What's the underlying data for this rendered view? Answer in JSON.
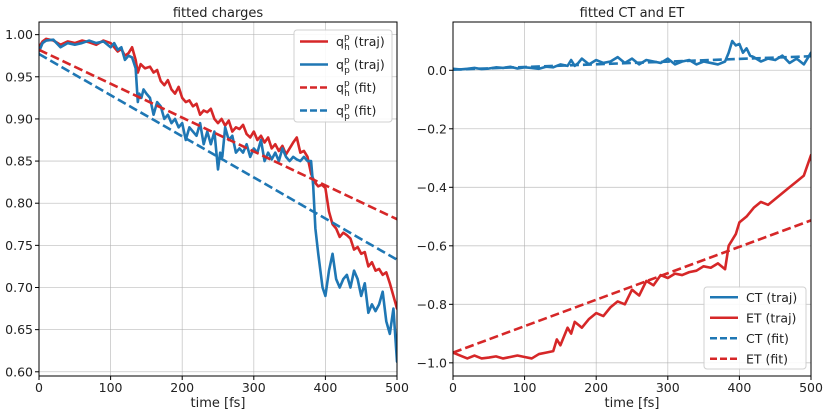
{
  "chart_data": [
    {
      "type": "line",
      "title": "fitted charges",
      "xlabel": "time [fs]",
      "ylabel": "",
      "xlim": [
        0,
        500
      ],
      "ylim": [
        0.595,
        1.015
      ],
      "xticks": [
        0,
        100,
        200,
        300,
        400,
        500
      ],
      "yticks": [
        0.6,
        0.65,
        0.7,
        0.75,
        0.8,
        0.85,
        0.9,
        0.95,
        1.0
      ],
      "xtick_labels": [
        "0",
        "100",
        "200",
        "300",
        "400",
        "500"
      ],
      "ytick_labels": [
        "0.60",
        "0.65",
        "0.70",
        "0.75",
        "0.80",
        "0.85",
        "0.90",
        "0.95",
        "1.00"
      ],
      "legend_position": "top-right",
      "series": [
        {
          "name": "q_h^p (traj)",
          "label_main": "q",
          "label_sup": "p",
          "label_sub": "h",
          "label_suffix": " (traj)",
          "color": "#d62728",
          "style": "solid",
          "x": [
            0,
            5,
            10,
            20,
            30,
            40,
            50,
            60,
            70,
            80,
            90,
            100,
            105,
            110,
            115,
            120,
            125,
            130,
            135,
            138,
            142,
            148,
            155,
            160,
            165,
            170,
            175,
            180,
            185,
            190,
            195,
            200,
            205,
            210,
            215,
            220,
            225,
            230,
            235,
            240,
            245,
            250,
            255,
            260,
            265,
            270,
            275,
            280,
            285,
            290,
            295,
            300,
            305,
            310,
            315,
            320,
            325,
            330,
            335,
            340,
            345,
            350,
            355,
            360,
            365,
            370,
            375,
            380,
            385,
            390,
            395,
            400,
            405,
            410,
            415,
            420,
            425,
            430,
            435,
            440,
            445,
            450,
            455,
            460,
            465,
            470,
            475,
            480,
            485,
            490,
            495,
            500
          ],
          "y": [
            0.985,
            0.992,
            0.995,
            0.993,
            0.988,
            0.992,
            0.99,
            0.993,
            0.991,
            0.988,
            0.993,
            0.99,
            0.985,
            0.98,
            0.983,
            0.975,
            0.978,
            0.985,
            0.97,
            0.955,
            0.965,
            0.96,
            0.962,
            0.955,
            0.958,
            0.945,
            0.94,
            0.946,
            0.935,
            0.93,
            0.938,
            0.925,
            0.92,
            0.922,
            0.915,
            0.918,
            0.905,
            0.91,
            0.908,
            0.912,
            0.9,
            0.895,
            0.9,
            0.892,
            0.898,
            0.885,
            0.89,
            0.888,
            0.893,
            0.882,
            0.878,
            0.885,
            0.875,
            0.88,
            0.872,
            0.878,
            0.865,
            0.87,
            0.862,
            0.868,
            0.858,
            0.865,
            0.872,
            0.878,
            0.86,
            0.862,
            0.855,
            0.835,
            0.825,
            0.82,
            0.822,
            0.818,
            0.79,
            0.775,
            0.77,
            0.76,
            0.765,
            0.762,
            0.758,
            0.745,
            0.748,
            0.74,
            0.742,
            0.725,
            0.73,
            0.72,
            0.722,
            0.715,
            0.718,
            0.705,
            0.69,
            0.675
          ]
        },
        {
          "name": "q_p^p (traj)",
          "label_main": "q",
          "label_sup": "p",
          "label_sub": "p",
          "label_suffix": " (traj)",
          "color": "#1f77b4",
          "style": "solid",
          "x": [
            0,
            5,
            10,
            20,
            30,
            40,
            50,
            60,
            70,
            80,
            90,
            100,
            105,
            110,
            115,
            120,
            125,
            130,
            135,
            138,
            140,
            143,
            146,
            150,
            155,
            160,
            165,
            170,
            175,
            180,
            185,
            190,
            195,
            200,
            205,
            210,
            215,
            220,
            225,
            230,
            235,
            240,
            245,
            250,
            253,
            256,
            260,
            265,
            270,
            275,
            280,
            285,
            290,
            295,
            300,
            305,
            310,
            315,
            320,
            325,
            330,
            335,
            340,
            345,
            350,
            355,
            360,
            365,
            370,
            375,
            380,
            383,
            386,
            390,
            393,
            396,
            400,
            405,
            410,
            415,
            420,
            425,
            430,
            435,
            440,
            445,
            450,
            455,
            460,
            465,
            470,
            475,
            480,
            485,
            490,
            495,
            500
          ],
          "y": [
            0.98,
            0.99,
            0.993,
            0.994,
            0.985,
            0.99,
            0.988,
            0.99,
            0.993,
            0.99,
            0.992,
            0.985,
            0.99,
            0.982,
            0.985,
            0.97,
            0.975,
            0.973,
            0.96,
            0.92,
            0.93,
            0.925,
            0.935,
            0.93,
            0.925,
            0.905,
            0.92,
            0.915,
            0.9,
            0.905,
            0.895,
            0.9,
            0.89,
            0.895,
            0.875,
            0.89,
            0.885,
            0.88,
            0.895,
            0.87,
            0.885,
            0.87,
            0.885,
            0.84,
            0.86,
            0.855,
            0.89,
            0.875,
            0.88,
            0.86,
            0.865,
            0.86,
            0.87,
            0.855,
            0.865,
            0.86,
            0.875,
            0.85,
            0.86,
            0.852,
            0.86,
            0.85,
            0.865,
            0.855,
            0.85,
            0.855,
            0.852,
            0.85,
            0.855,
            0.85,
            0.85,
            0.82,
            0.77,
            0.74,
            0.72,
            0.7,
            0.69,
            0.72,
            0.74,
            0.71,
            0.7,
            0.71,
            0.715,
            0.7,
            0.72,
            0.71,
            0.69,
            0.705,
            0.67,
            0.68,
            0.672,
            0.68,
            0.695,
            0.66,
            0.645,
            0.675,
            0.612
          ]
        },
        {
          "name": "q_h^p (fit)",
          "label_main": "q",
          "label_sup": "p",
          "label_sub": "h",
          "label_suffix": " (fit)",
          "color": "#d62728",
          "style": "dashed",
          "x": [
            0,
            500
          ],
          "y": [
            0.982,
            0.781
          ]
        },
        {
          "name": "q_p^p (fit)",
          "label_main": "q",
          "label_sup": "p",
          "label_sub": "p",
          "label_suffix": " (fit)",
          "color": "#1f77b4",
          "style": "dashed",
          "x": [
            0,
            500
          ],
          "y": [
            0.977,
            0.733
          ]
        }
      ]
    },
    {
      "type": "line",
      "title": "fitted CT and ET",
      "xlabel": "time [fs]",
      "ylabel": "",
      "xlim": [
        0,
        500
      ],
      "ylim": [
        -1.045,
        0.165
      ],
      "xticks": [
        0,
        100,
        200,
        300,
        400,
        500
      ],
      "yticks": [
        -1.0,
        -0.8,
        -0.6,
        -0.4,
        -0.2,
        0.0
      ],
      "xtick_labels": [
        "0",
        "100",
        "200",
        "300",
        "400",
        "500"
      ],
      "ytick_labels": [
        "−1.0",
        "−0.8",
        "−0.6",
        "−0.4",
        "−0.2",
        "0.0"
      ],
      "legend_position": "lower-right",
      "series": [
        {
          "name": "CT (traj)",
          "color": "#1f77b4",
          "style": "solid",
          "x": [
            0,
            10,
            20,
            30,
            40,
            50,
            60,
            70,
            80,
            90,
            100,
            110,
            120,
            130,
            140,
            150,
            160,
            165,
            170,
            175,
            180,
            190,
            200,
            210,
            220,
            230,
            240,
            250,
            260,
            270,
            280,
            290,
            300,
            310,
            320,
            330,
            340,
            350,
            360,
            370,
            380,
            385,
            390,
            395,
            400,
            405,
            410,
            415,
            420,
            430,
            440,
            450,
            460,
            470,
            480,
            490,
            500
          ],
          "y": [
            0.005,
            0.003,
            0.005,
            0.008,
            0.004,
            0.006,
            0.01,
            0.008,
            0.012,
            0.006,
            0.01,
            0.008,
            0.005,
            0.012,
            0.01,
            0.02,
            0.015,
            0.035,
            0.015,
            0.025,
            0.04,
            0.02,
            0.035,
            0.025,
            0.03,
            0.045,
            0.025,
            0.04,
            0.02,
            0.035,
            0.03,
            0.025,
            0.04,
            0.02,
            0.03,
            0.035,
            0.02,
            0.03,
            0.025,
            0.02,
            0.03,
            0.06,
            0.1,
            0.085,
            0.09,
            0.06,
            0.075,
            0.05,
            0.045,
            0.03,
            0.04,
            0.035,
            0.05,
            0.025,
            0.04,
            0.02,
            0.06
          ]
        },
        {
          "name": "ET (traj)",
          "color": "#d62728",
          "style": "solid",
          "x": [
            0,
            10,
            20,
            30,
            40,
            50,
            60,
            70,
            80,
            90,
            100,
            110,
            120,
            130,
            140,
            145,
            150,
            160,
            165,
            170,
            175,
            180,
            190,
            200,
            210,
            220,
            230,
            240,
            250,
            260,
            270,
            280,
            290,
            300,
            310,
            320,
            330,
            340,
            350,
            360,
            370,
            380,
            385,
            390,
            395,
            400,
            410,
            420,
            430,
            440,
            450,
            460,
            470,
            480,
            490,
            500
          ],
          "y": [
            -0.965,
            -0.975,
            -0.985,
            -0.975,
            -0.985,
            -0.982,
            -0.978,
            -0.985,
            -0.98,
            -0.975,
            -0.98,
            -0.985,
            -0.97,
            -0.965,
            -0.96,
            -0.92,
            -0.94,
            -0.88,
            -0.9,
            -0.86,
            -0.87,
            -0.88,
            -0.85,
            -0.83,
            -0.84,
            -0.81,
            -0.79,
            -0.8,
            -0.75,
            -0.77,
            -0.72,
            -0.735,
            -0.7,
            -0.71,
            -0.695,
            -0.7,
            -0.69,
            -0.685,
            -0.67,
            -0.675,
            -0.66,
            -0.68,
            -0.6,
            -0.58,
            -0.56,
            -0.52,
            -0.5,
            -0.47,
            -0.45,
            -0.46,
            -0.44,
            -0.42,
            -0.4,
            -0.38,
            -0.36,
            -0.29
          ]
        },
        {
          "name": "CT (fit)",
          "color": "#1f77b4",
          "style": "dashed",
          "x": [
            0,
            500
          ],
          "y": [
            0.002,
            0.048
          ]
        },
        {
          "name": "ET (fit)",
          "color": "#d62728",
          "style": "dashed",
          "x": [
            0,
            500
          ],
          "y": [
            -0.965,
            -0.513
          ]
        }
      ]
    }
  ]
}
